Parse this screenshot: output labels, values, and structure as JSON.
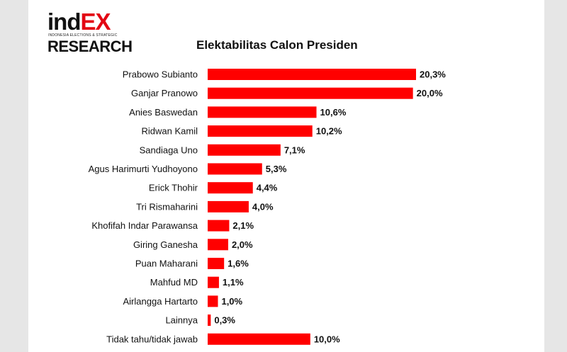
{
  "logo": {
    "top_plain": "ind",
    "top_accent": "EX",
    "subtitle": "INDONESIA ELECTIONS & STRATEGIC",
    "bottom": "RESEARCH"
  },
  "colors": {
    "bar": "#ff0000",
    "brand_red": "#e30613",
    "text": "#111111"
  },
  "chart_data": {
    "type": "bar",
    "orientation": "horizontal",
    "title": "Elektabilitas Calon Presiden",
    "xlabel": "",
    "ylabel": "",
    "xlim": [
      0,
      20.3
    ],
    "grid": false,
    "legend": "none",
    "categories": [
      "Prabowo Subianto",
      "Ganjar Pranowo",
      "Anies Baswedan",
      "Ridwan Kamil",
      "Sandiaga Uno",
      "Agus Harimurti Yudhoyono",
      "Erick Thohir",
      "Tri Rismaharini",
      "Khofifah Indar Parawansa",
      "Giring Ganesha",
      "Puan Maharani",
      "Mahfud MD",
      "Airlangga Hartarto",
      "Lainnya",
      "Tidak tahu/tidak jawab"
    ],
    "values": [
      20.3,
      20.0,
      10.6,
      10.2,
      7.1,
      5.3,
      4.4,
      4.0,
      2.1,
      2.0,
      1.6,
      1.1,
      1.0,
      0.3,
      10.0
    ],
    "data_labels": [
      "20,3%",
      "20,0%",
      "10,6%",
      "10,2%",
      "7,1%",
      "5,3%",
      "4,4%",
      "4,0%",
      "2,1%",
      "2,0%",
      "1,6%",
      "1,1%",
      "1,0%",
      "0,3%",
      "10,0%"
    ]
  }
}
